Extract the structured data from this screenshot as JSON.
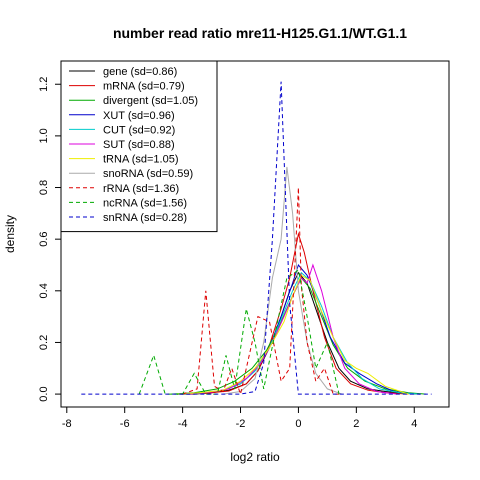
{
  "chart_data": {
    "type": "line",
    "title": "number read ratio mre11-H125.G1.1/WT.G1.1",
    "xlabel": "log2 ratio",
    "ylabel": "density",
    "xlim": [
      -8.2,
      5.2
    ],
    "ylim": [
      -0.05,
      1.29
    ],
    "x_ticks": [
      -8,
      -6,
      -4,
      -2,
      0,
      2,
      4
    ],
    "y_ticks": [
      0.0,
      0.2,
      0.4,
      0.6,
      0.8,
      1.0,
      1.2
    ],
    "x_tick_labels": [
      "-8",
      "-6",
      "-4",
      "-2",
      "0",
      "2",
      "4"
    ],
    "y_tick_labels": [
      "0.0",
      "0.2",
      "0.4",
      "0.6",
      "0.8",
      "1.0",
      "1.2"
    ],
    "grid": false,
    "legend_position": "top-left",
    "series": [
      {
        "name": "gene (sd=0.86)",
        "color": "#000000",
        "dash": "solid",
        "x": [
          -4.2,
          -3.6,
          -3.0,
          -2.4,
          -1.8,
          -1.4,
          -1.0,
          -0.6,
          -0.3,
          0.0,
          0.3,
          0.6,
          1.0,
          1.4,
          1.8,
          2.4,
          3.0,
          3.6,
          4.2
        ],
        "y": [
          0.0,
          0.0,
          0.005,
          0.015,
          0.04,
          0.09,
          0.18,
          0.3,
          0.4,
          0.47,
          0.43,
          0.33,
          0.2,
          0.1,
          0.05,
          0.02,
          0.01,
          0.003,
          0.0
        ]
      },
      {
        "name": "mRNA (sd=0.79)",
        "color": "#dd0000",
        "dash": "solid",
        "x": [
          -4.0,
          -3.2,
          -2.4,
          -1.8,
          -1.4,
          -1.0,
          -0.6,
          -0.3,
          0.0,
          0.2,
          0.5,
          0.9,
          1.3,
          1.8,
          2.4,
          3.0,
          3.8
        ],
        "y": [
          0.0,
          0.003,
          0.012,
          0.04,
          0.09,
          0.19,
          0.33,
          0.45,
          0.62,
          0.55,
          0.4,
          0.22,
          0.1,
          0.04,
          0.015,
          0.005,
          0.0
        ]
      },
      {
        "name": "divergent (sd=1.05)",
        "color": "#00aa00",
        "dash": "solid",
        "x": [
          -4.4,
          -3.6,
          -2.8,
          -2.2,
          -1.6,
          -1.1,
          -0.6,
          -0.2,
          0.1,
          0.4,
          0.8,
          1.2,
          1.7,
          2.3,
          3.0,
          3.8,
          4.4
        ],
        "y": [
          0.0,
          0.005,
          0.02,
          0.05,
          0.1,
          0.17,
          0.28,
          0.38,
          0.45,
          0.41,
          0.3,
          0.19,
          0.1,
          0.05,
          0.02,
          0.005,
          0.0
        ]
      },
      {
        "name": "XUT (sd=0.96)",
        "color": "#0000cc",
        "dash": "solid",
        "x": [
          -4.2,
          -3.4,
          -2.6,
          -2.0,
          -1.5,
          -1.0,
          -0.6,
          -0.2,
          0.0,
          0.3,
          0.7,
          1.1,
          1.6,
          2.1,
          2.7,
          3.3,
          4.0
        ],
        "y": [
          0.0,
          0.003,
          0.015,
          0.04,
          0.09,
          0.18,
          0.3,
          0.43,
          0.5,
          0.46,
          0.35,
          0.22,
          0.12,
          0.08,
          0.04,
          0.01,
          0.0
        ]
      },
      {
        "name": "CUT (sd=0.92)",
        "color": "#00cccc",
        "dash": "solid",
        "x": [
          -4.2,
          -3.4,
          -2.6,
          -2.0,
          -1.5,
          -1.0,
          -0.6,
          -0.2,
          0.1,
          0.4,
          0.8,
          1.2,
          1.7,
          2.2,
          2.8,
          3.5,
          4.2
        ],
        "y": [
          0.0,
          0.003,
          0.015,
          0.04,
          0.09,
          0.18,
          0.29,
          0.4,
          0.47,
          0.44,
          0.34,
          0.22,
          0.12,
          0.06,
          0.02,
          0.005,
          0.0
        ]
      },
      {
        "name": "SUT (sd=0.88)",
        "color": "#dd00dd",
        "dash": "solid",
        "x": [
          -3.8,
          -3.0,
          -2.4,
          -1.8,
          -1.3,
          -0.9,
          -0.5,
          -0.2,
          0.1,
          0.3,
          0.5,
          0.8,
          1.2,
          1.6,
          2.1,
          2.7,
          3.4
        ],
        "y": [
          0.0,
          0.008,
          0.02,
          0.06,
          0.12,
          0.2,
          0.3,
          0.38,
          0.45,
          0.43,
          0.5,
          0.4,
          0.22,
          0.1,
          0.04,
          0.01,
          0.0
        ]
      },
      {
        "name": "tRNA (sd=1.05)",
        "color": "#eeee00",
        "dash": "solid",
        "x": [
          -4.2,
          -3.4,
          -2.6,
          -2.0,
          -1.5,
          -1.0,
          -0.5,
          -0.2,
          0.1,
          0.4,
          0.8,
          1.2,
          1.6,
          2.0,
          2.4,
          3.0,
          3.8
        ],
        "y": [
          0.0,
          0.005,
          0.015,
          0.05,
          0.1,
          0.18,
          0.28,
          0.38,
          0.46,
          0.44,
          0.32,
          0.22,
          0.13,
          0.1,
          0.08,
          0.03,
          0.0
        ]
      },
      {
        "name": "snoRNA (sd=0.59)",
        "color": "#aaaaaa",
        "dash": "solid",
        "x": [
          -2.6,
          -2.0,
          -1.5,
          -1.2,
          -0.9,
          -0.6,
          -0.4,
          -0.2,
          0.0,
          0.3,
          0.6,
          1.0,
          1.5
        ],
        "y": [
          0.0,
          0.01,
          0.06,
          0.2,
          0.45,
          0.6,
          0.88,
          0.7,
          0.4,
          0.2,
          0.08,
          0.02,
          0.0
        ]
      },
      {
        "name": "rRNA (sd=1.36)",
        "color": "#dd0000",
        "dash": "dashed",
        "x": [
          -4.0,
          -3.5,
          -3.2,
          -2.9,
          -2.6,
          -2.3,
          -2.0,
          -1.7,
          -1.4,
          -1.0,
          -0.6,
          -0.3,
          -0.1,
          0.0,
          0.1,
          0.3,
          0.6,
          0.9,
          1.2,
          1.5
        ],
        "y": [
          0.0,
          0.02,
          0.4,
          0.03,
          0.01,
          0.1,
          0.0,
          0.15,
          0.3,
          0.28,
          0.05,
          0.1,
          0.55,
          0.8,
          0.42,
          0.2,
          0.05,
          0.1,
          0.0,
          0.0
        ]
      },
      {
        "name": "ncRNA (sd=1.56)",
        "color": "#00aa00",
        "dash": "dashed",
        "x": [
          -5.5,
          -5.0,
          -4.6,
          -4.0,
          -3.6,
          -3.2,
          -2.8,
          -2.5,
          -2.2,
          -1.8,
          -1.5,
          -1.2,
          -0.8,
          -0.4,
          0.0,
          0.3,
          0.6,
          1.0,
          1.4
        ],
        "y": [
          0.0,
          0.15,
          0.0,
          0.0,
          0.08,
          0.0,
          0.0,
          0.15,
          0.02,
          0.33,
          0.2,
          0.02,
          0.24,
          0.45,
          0.48,
          0.3,
          0.1,
          0.2,
          0.0
        ]
      },
      {
        "name": "snRNA (sd=0.28)",
        "color": "#0000cc",
        "dash": "dashed",
        "x": [
          -7.5,
          -2.0,
          -1.5,
          -1.2,
          -0.9,
          -0.6,
          -0.3,
          0.0,
          4.6
        ],
        "y": [
          0.0,
          0.0,
          0.01,
          0.12,
          0.6,
          1.21,
          0.35,
          0.0,
          0.0
        ]
      }
    ]
  }
}
